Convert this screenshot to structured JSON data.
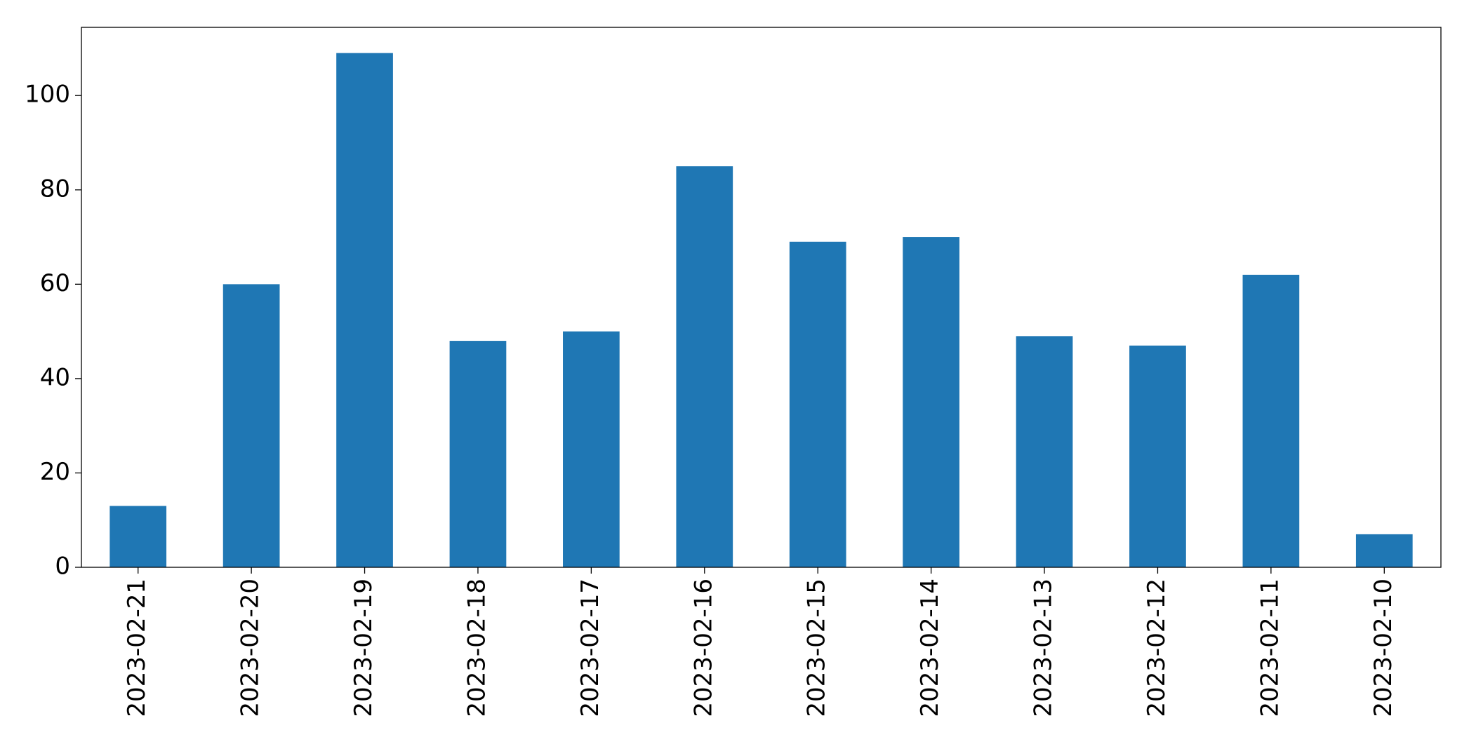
{
  "chart_data": {
    "type": "bar",
    "categories": [
      "2023-02-21",
      "2023-02-20",
      "2023-02-19",
      "2023-02-18",
      "2023-02-17",
      "2023-02-16",
      "2023-02-15",
      "2023-02-14",
      "2023-02-13",
      "2023-02-12",
      "2023-02-11",
      "2023-02-10"
    ],
    "values": [
      13,
      60,
      109,
      48,
      50,
      85,
      69,
      70,
      49,
      47,
      62,
      7
    ],
    "color": "#1f77b4",
    "ylim": [
      0,
      114.45
    ],
    "yticks": [
      0,
      20,
      40,
      60,
      80,
      100
    ],
    "grid": false
  }
}
